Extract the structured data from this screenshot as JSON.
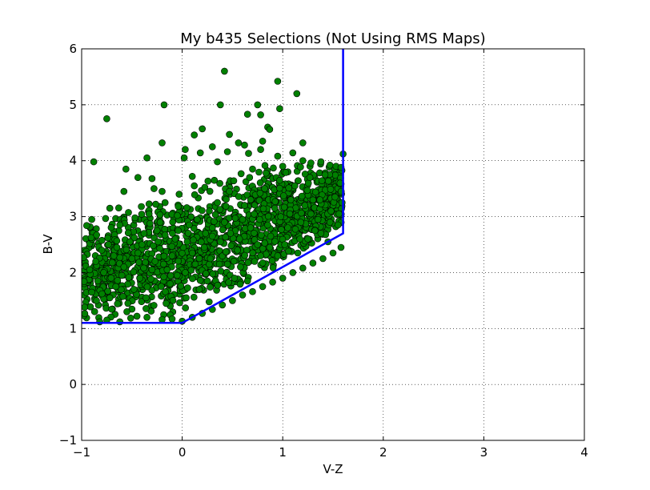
{
  "chart_data": {
    "type": "scatter",
    "title": "My b435 Selections (Not Using RMS Maps)",
    "xlabel": "V-Z",
    "ylabel": "B-V",
    "xlim": [
      -1,
      4
    ],
    "ylim": [
      -1,
      6
    ],
    "xticks": [
      -1,
      0,
      1,
      2,
      3,
      4
    ],
    "yticks": [
      -1,
      0,
      1,
      2,
      3,
      4,
      5,
      6
    ],
    "xtick_labels": [
      "−1",
      "0",
      "1",
      "2",
      "3",
      "4"
    ],
    "ytick_labels": [
      "−1",
      "0",
      "1",
      "2",
      "3",
      "4",
      "5",
      "6"
    ],
    "grid": true,
    "colors": {
      "points": "#008000",
      "point_edge": "#000000",
      "boundary": "#0000ff"
    },
    "selection_boundary": {
      "x": [
        -1.0,
        0.0,
        1.6,
        1.6
      ],
      "y": [
        1.1,
        1.1,
        2.7,
        6.0
      ]
    },
    "series": [
      {
        "points": [
          [
            0.42,
            5.6
          ],
          [
            0.95,
            5.42
          ],
          [
            1.14,
            5.2
          ],
          [
            -0.18,
            5.0
          ],
          [
            0.38,
            5.0
          ],
          [
            0.75,
            5.0
          ],
          [
            0.97,
            4.93
          ],
          [
            0.65,
            4.83
          ],
          [
            0.78,
            4.82
          ],
          [
            -0.75,
            4.75
          ],
          [
            0.85,
            4.6
          ],
          [
            0.87,
            4.56
          ],
          [
            0.12,
            4.46
          ],
          [
            0.47,
            4.47
          ],
          [
            0.2,
            4.57
          ],
          [
            0.56,
            4.32
          ],
          [
            0.8,
            4.35
          ],
          [
            1.2,
            4.32
          ],
          [
            -0.2,
            4.32
          ],
          [
            0.03,
            4.2
          ],
          [
            0.3,
            4.25
          ],
          [
            0.62,
            4.28
          ],
          [
            0.78,
            4.2
          ],
          [
            1.1,
            4.14
          ],
          [
            0.18,
            4.14
          ],
          [
            0.45,
            4.16
          ],
          [
            0.66,
            4.13
          ],
          [
            -0.35,
            4.05
          ],
          [
            0.95,
            4.08
          ],
          [
            1.6,
            4.12
          ],
          [
            -0.88,
            3.98
          ],
          [
            0.02,
            4.05
          ],
          [
            1.2,
            4.0
          ],
          [
            1.28,
            3.96
          ],
          [
            1.38,
            3.98
          ],
          [
            1.47,
            3.92
          ],
          [
            1.53,
            3.9
          ],
          [
            1.58,
            3.88
          ],
          [
            1.0,
            3.9
          ],
          [
            -0.56,
            3.85
          ],
          [
            0.35,
            3.98
          ],
          [
            0.7,
            3.85
          ],
          [
            -0.44,
            3.7
          ],
          [
            -0.3,
            3.68
          ],
          [
            0.1,
            3.72
          ],
          [
            -0.58,
            3.45
          ],
          [
            -0.28,
            3.5
          ],
          [
            -0.2,
            3.45
          ],
          [
            -0.72,
            3.15
          ],
          [
            -0.9,
            2.95
          ],
          [
            -0.95,
            2.84
          ],
          [
            -0.98,
            2.27
          ],
          [
            -0.97,
            1.38
          ],
          [
            -0.82,
            1.12
          ],
          [
            -0.75,
            1.15
          ],
          [
            -0.62,
            1.12
          ],
          [
            -0.55,
            1.3
          ],
          [
            -0.45,
            1.22
          ],
          [
            -0.35,
            1.2
          ],
          [
            -0.2,
            1.16
          ],
          [
            -0.1,
            1.17
          ],
          [
            0.0,
            1.13
          ],
          [
            0.1,
            1.2
          ],
          [
            0.2,
            1.27
          ],
          [
            0.3,
            1.34
          ],
          [
            0.4,
            1.42
          ],
          [
            0.5,
            1.5
          ],
          [
            0.6,
            1.6
          ],
          [
            0.7,
            1.66
          ],
          [
            0.8,
            1.75
          ],
          [
            0.9,
            1.83
          ],
          [
            1.0,
            1.9
          ],
          [
            1.1,
            2.0
          ],
          [
            1.2,
            2.08
          ],
          [
            1.3,
            2.17
          ],
          [
            1.4,
            2.25
          ],
          [
            1.5,
            2.35
          ],
          [
            1.58,
            2.45
          ],
          [
            -0.92,
            2.05
          ],
          [
            -0.86,
            2.2
          ],
          [
            -0.8,
            2.4
          ],
          [
            -0.74,
            2.62
          ],
          [
            -0.68,
            2.3
          ],
          [
            -0.62,
            2.85
          ],
          [
            -0.58,
            2.1
          ],
          [
            -0.52,
            2.55
          ],
          [
            -0.47,
            2.98
          ],
          [
            -0.42,
            1.9
          ],
          [
            -0.38,
            2.7
          ],
          [
            -0.33,
            3.05
          ],
          [
            -0.27,
            2.2
          ],
          [
            -0.22,
            2.9
          ],
          [
            -0.17,
            3.25
          ],
          [
            -0.12,
            1.8
          ],
          [
            -0.07,
            2.6
          ],
          [
            -0.03,
            3.4
          ],
          [
            0.03,
            2.0
          ],
          [
            0.07,
            2.85
          ],
          [
            0.12,
            3.55
          ],
          [
            0.17,
            1.7
          ],
          [
            0.22,
            2.45
          ],
          [
            0.27,
            3.1
          ],
          [
            0.32,
            3.65
          ],
          [
            0.37,
            2.15
          ],
          [
            0.42,
            2.9
          ],
          [
            0.47,
            3.45
          ],
          [
            0.52,
            1.9
          ],
          [
            0.57,
            2.6
          ],
          [
            0.62,
            3.2
          ],
          [
            0.67,
            3.7
          ],
          [
            0.72,
            2.2
          ],
          [
            0.77,
            2.95
          ],
          [
            0.82,
            3.5
          ],
          [
            0.87,
            2.45
          ],
          [
            0.92,
            3.15
          ],
          [
            0.97,
            3.65
          ],
          [
            1.02,
            2.5
          ],
          [
            1.07,
            3.05
          ],
          [
            1.12,
            3.55
          ],
          [
            1.17,
            2.6
          ],
          [
            1.22,
            3.2
          ],
          [
            1.27,
            3.7
          ],
          [
            1.32,
            2.75
          ],
          [
            1.37,
            3.3
          ],
          [
            1.42,
            3.75
          ],
          [
            1.47,
            2.9
          ],
          [
            1.52,
            3.35
          ],
          [
            1.57,
            3.6
          ],
          [
            1.59,
            3.25
          ],
          [
            -0.9,
            1.65
          ],
          [
            -0.84,
            1.85
          ],
          [
            -0.78,
            2.0
          ],
          [
            -0.72,
            1.55
          ],
          [
            -0.66,
            1.75
          ],
          [
            -0.6,
            1.95
          ],
          [
            -0.54,
            1.45
          ],
          [
            -0.48,
            1.7
          ],
          [
            -0.44,
            2.35
          ],
          [
            -0.36,
            1.55
          ],
          [
            -0.3,
            2.05
          ],
          [
            -0.24,
            2.55
          ],
          [
            -0.16,
            1.45
          ],
          [
            -0.1,
            2.3
          ],
          [
            -0.04,
            2.75
          ],
          [
            0.04,
            1.55
          ],
          [
            0.1,
            2.35
          ],
          [
            0.15,
            2.95
          ],
          [
            0.25,
            1.85
          ],
          [
            0.3,
            2.65
          ],
          [
            0.35,
            3.25
          ],
          [
            0.45,
            2.15
          ],
          [
            0.55,
            2.4
          ],
          [
            0.6,
            2.95
          ],
          [
            0.65,
            1.85
          ],
          [
            0.75,
            2.5
          ],
          [
            0.85,
            2.85
          ],
          [
            0.95,
            2.3
          ],
          [
            1.05,
            2.8
          ],
          [
            1.15,
            2.35
          ],
          [
            1.25,
            2.6
          ],
          [
            1.35,
            2.95
          ],
          [
            1.45,
            2.55
          ],
          [
            1.55,
            2.85
          ],
          [
            -0.65,
            2.45
          ],
          [
            -0.5,
            2.25
          ],
          [
            -0.4,
            2.5
          ],
          [
            -0.25,
            2.75
          ],
          [
            -0.15,
            2.05
          ],
          [
            -0.05,
            1.95
          ],
          [
            0.05,
            2.55
          ],
          [
            0.13,
            2.15
          ],
          [
            0.28,
            2.25
          ],
          [
            0.38,
            2.55
          ],
          [
            0.48,
            2.7
          ],
          [
            0.58,
            2.1
          ],
          [
            0.68,
            2.8
          ],
          [
            0.78,
            2.3
          ],
          [
            0.88,
            2.65
          ],
          [
            0.98,
            3.0
          ],
          [
            1.08,
            3.3
          ],
          [
            1.18,
            2.9
          ],
          [
            1.28,
            3.05
          ],
          [
            1.38,
            2.7
          ],
          [
            1.48,
            3.1
          ],
          [
            1.56,
            3.05
          ]
        ]
      }
    ]
  }
}
